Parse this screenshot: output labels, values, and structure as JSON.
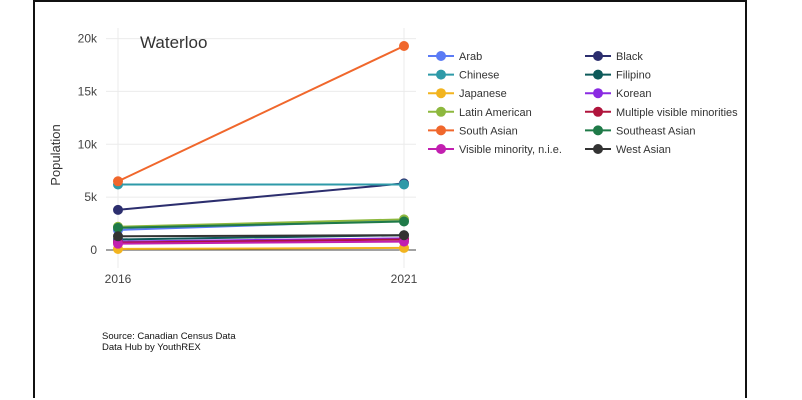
{
  "source_lines": [
    "Source: Canadian Census Data",
    "Data Hub by YouthREX"
  ],
  "chart_data": {
    "type": "line",
    "title": "Waterloo",
    "ylabel": "Population",
    "xlabel": "",
    "x": [
      "2016",
      "2021"
    ],
    "ylim": [
      -1700,
      21000
    ],
    "yticks": [
      0,
      5000,
      10000,
      15000,
      20000
    ],
    "ytick_labels": [
      "0",
      "5k",
      "10k",
      "15k",
      "20k"
    ],
    "grid": true,
    "legend_position": "right",
    "series": [
      {
        "name": "Arab",
        "color": "#5b7bf5",
        "values": [
          1900,
          2800
        ]
      },
      {
        "name": "Black",
        "color": "#2c2e6e",
        "values": [
          3800,
          6300
        ]
      },
      {
        "name": "Chinese",
        "color": "#2e9aa8",
        "values": [
          6200,
          6200
        ]
      },
      {
        "name": "Filipino",
        "color": "#0d5a5a",
        "values": [
          1000,
          1400
        ]
      },
      {
        "name": "Japanese",
        "color": "#f2b41f",
        "values": [
          100,
          200
        ]
      },
      {
        "name": "Korean",
        "color": "#8a2be2",
        "values": [
          800,
          1100
        ]
      },
      {
        "name": "Latin American",
        "color": "#8db83e",
        "values": [
          2200,
          2900
        ]
      },
      {
        "name": "Multiple visible minorities",
        "color": "#b0143c",
        "values": [
          700,
          1000
        ]
      },
      {
        "name": "South Asian",
        "color": "#f0672c",
        "values": [
          6500,
          19300
        ]
      },
      {
        "name": "Southeast Asian",
        "color": "#1f7a48",
        "values": [
          2100,
          2700
        ]
      },
      {
        "name": "Visible minority, n.i.e.",
        "color": "#c21fb0",
        "values": [
          600,
          800
        ]
      },
      {
        "name": "West Asian",
        "color": "#333333",
        "values": [
          1300,
          1400
        ]
      }
    ]
  }
}
